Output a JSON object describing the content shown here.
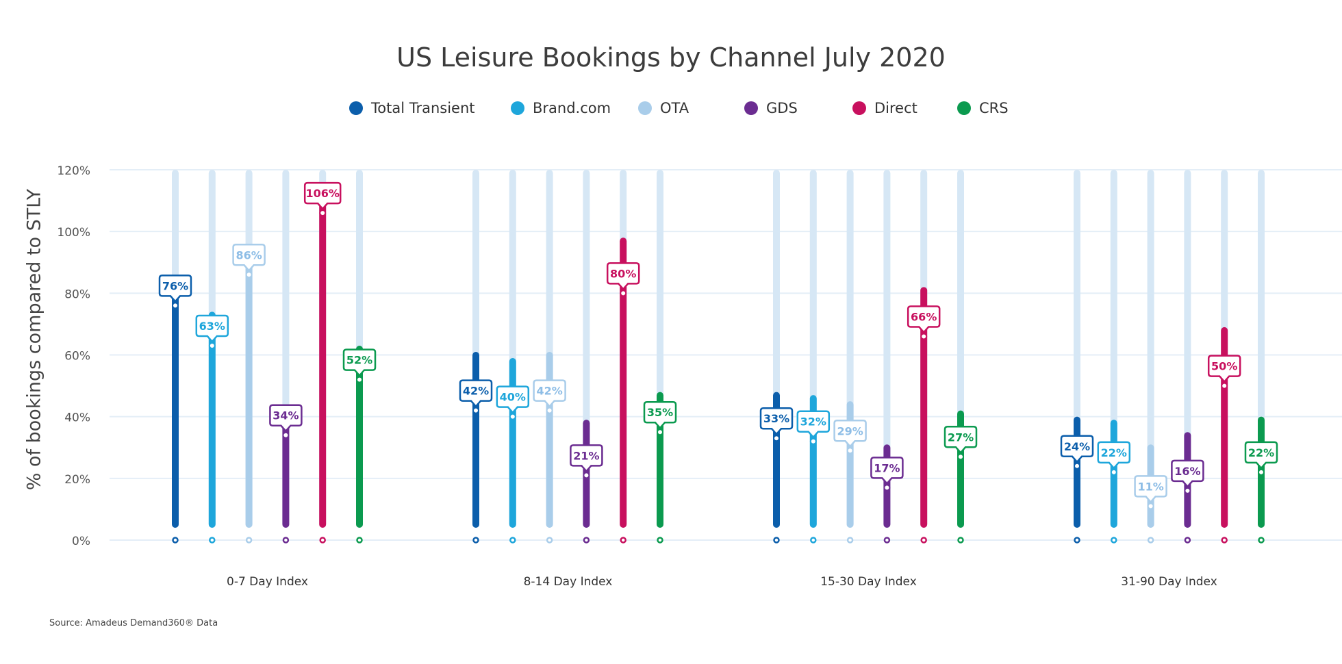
{
  "chart_data": {
    "type": "bar",
    "title": "US Leisure Bookings by Channel July 2020",
    "xlabel": "",
    "ylabel": "% of bookings compared to STLY",
    "ylim": [
      0,
      120
    ],
    "yticks": [
      "0%",
      "20%",
      "40%",
      "60%",
      "80%",
      "100%",
      "120%"
    ],
    "ytick_values": [
      0,
      20,
      40,
      60,
      80,
      100,
      120
    ],
    "grid": true,
    "legend_position": "top",
    "categories": [
      "0-7 Day Index",
      "8-14 Day Index",
      "15-30 Day Index",
      "31-90 Day Index"
    ],
    "background_bar_max": 120,
    "series": [
      {
        "name": "Total Transient",
        "color": "#0b5eab",
        "label_text_color": "#0b5eab",
        "bar_values": [
          81,
          61,
          48,
          40
        ],
        "values": [
          76,
          42,
          33,
          24
        ],
        "labels": [
          "76%",
          "42%",
          "33%",
          "24%"
        ]
      },
      {
        "name": "Brand.com",
        "color": "#1ea6db",
        "label_text_color": "#1ea6db",
        "bar_values": [
          74,
          59,
          47,
          39
        ],
        "values": [
          63,
          40,
          32,
          22
        ],
        "labels": [
          "63%",
          "40%",
          "32%",
          "22%"
        ]
      },
      {
        "name": "OTA",
        "color": "#a9cdea",
        "label_text_color": "#8dbde6",
        "bar_values": [
          96,
          61,
          45,
          31
        ],
        "values": [
          86,
          42,
          29,
          11
        ],
        "labels": [
          "86%",
          "42%",
          "29%",
          "11%"
        ]
      },
      {
        "name": "GDS",
        "color": "#6b2c91",
        "label_text_color": "#6b2c91",
        "bar_values": [
          40,
          39,
          31,
          35
        ],
        "values": [
          34,
          21,
          17,
          16
        ],
        "labels": [
          "34%",
          "21%",
          "17%",
          "16%"
        ]
      },
      {
        "name": "Direct",
        "color": "#c8105e",
        "label_text_color": "#c8105e",
        "bar_values": [
          115,
          98,
          82,
          69
        ],
        "values": [
          106,
          80,
          66,
          50
        ],
        "labels": [
          "106%",
          "80%",
          "66%",
          "50%"
        ]
      },
      {
        "name": "CRS",
        "color": "#0b9a4f",
        "label_text_color": "#0b9a4f",
        "bar_values": [
          63,
          48,
          42,
          40
        ],
        "values": [
          52,
          35,
          27,
          22
        ],
        "labels": [
          "52%",
          "35%",
          "27%",
          "22%"
        ]
      }
    ],
    "source": "Source: Amadeus Demand360® Data"
  },
  "colors": {
    "track": "#d6e7f5",
    "gridline": "#e4eef7",
    "axis_text": "#555555"
  }
}
